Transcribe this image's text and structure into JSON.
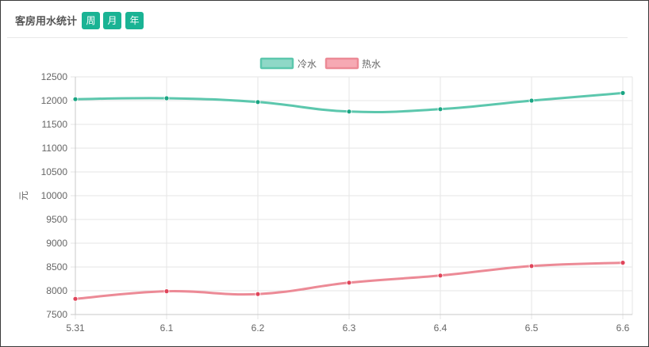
{
  "header": {
    "title": "客房用水统计",
    "buttons": [
      "周",
      "月",
      "年"
    ]
  },
  "chart_data": {
    "type": "line",
    "categories": [
      "5.31",
      "6.1",
      "6.2",
      "6.3",
      "6.4",
      "6.5",
      "6.6"
    ],
    "series": [
      {
        "name": "冷水",
        "values": [
          12030,
          12050,
          11970,
          11770,
          11820,
          12000,
          12160
        ],
        "color": "#5cc7ad"
      },
      {
        "name": "热水",
        "values": [
          7830,
          7990,
          7930,
          8170,
          8320,
          8520,
          8590
        ],
        "color": "#ec8a96"
      }
    ],
    "ylabel": "元",
    "ylim": [
      7500,
      12500
    ],
    "yticks": [
      "12500",
      "12000",
      "11500",
      "11000",
      "10500",
      "10000",
      "9500",
      "9000",
      "8500",
      "8000",
      "7500"
    ],
    "grid": true,
    "legend": "top-center"
  },
  "colors": {
    "accent": "#1ab394",
    "cold_point": "#1aa583",
    "hot_point": "#e0455a"
  }
}
